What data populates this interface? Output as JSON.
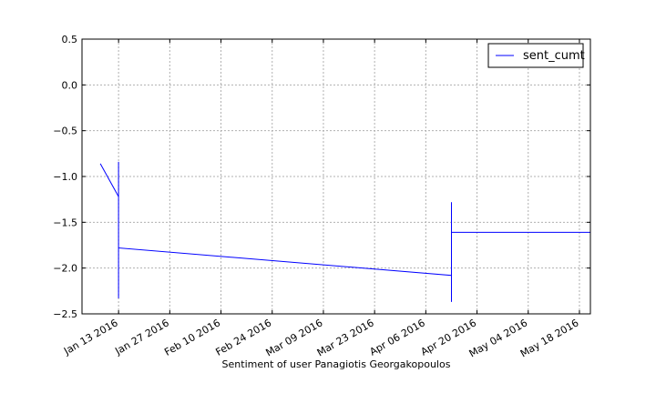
{
  "chart_data": {
    "type": "line",
    "title": "",
    "xlabel": "Sentiment of user Panagiotis Georgakopoulos",
    "ylabel": "",
    "xlim": [
      "2016-01-03",
      "2016-05-21"
    ],
    "ylim": [
      -2.5,
      0.5
    ],
    "grid": true,
    "legend_position": "top-right",
    "x_tick_labels": [
      "Jan 13 2016",
      "Jan 27 2016",
      "Feb 10 2016",
      "Feb 24 2016",
      "Mar 09 2016",
      "Mar 23 2016",
      "Apr 06 2016",
      "Apr 20 2016",
      "May 04 2016",
      "May 18 2016"
    ],
    "x_ticks": [
      "2016-01-13",
      "2016-01-27",
      "2016-02-10",
      "2016-02-24",
      "2016-03-09",
      "2016-03-23",
      "2016-04-06",
      "2016-04-20",
      "2016-05-04",
      "2016-05-18"
    ],
    "y_tick_labels": [
      "0.5",
      "0.0",
      "−0.5",
      "−1.0",
      "−1.5",
      "−2.0",
      "−2.5"
    ],
    "y_ticks": [
      0.5,
      0.0,
      -0.5,
      -1.0,
      -1.5,
      -2.0,
      -2.5
    ],
    "series": [
      {
        "name": "sent_cumt",
        "color": "#0000ff",
        "x": [
          "2016-01-08",
          "2016-01-13",
          "2016-01-13",
          "2016-01-13",
          "2016-01-13",
          "2016-01-13",
          "2016-01-13",
          "2016-01-13",
          "2016-04-13",
          "2016-04-13",
          "2016-04-13",
          "2016-04-13",
          "2016-04-13",
          "2016-04-13",
          "2016-05-21",
          "2016-05-21",
          "2016-05-21",
          "2016-05-21"
        ],
        "y": [
          -0.86,
          -1.22,
          -0.84,
          -1.55,
          -2.33,
          -1.4,
          -2.2,
          -1.78,
          -2.08,
          -2.37,
          -1.28,
          -2.07,
          -1.9,
          -1.61,
          -1.61,
          -1.3,
          -0.95,
          -1.35
        ]
      }
    ]
  }
}
